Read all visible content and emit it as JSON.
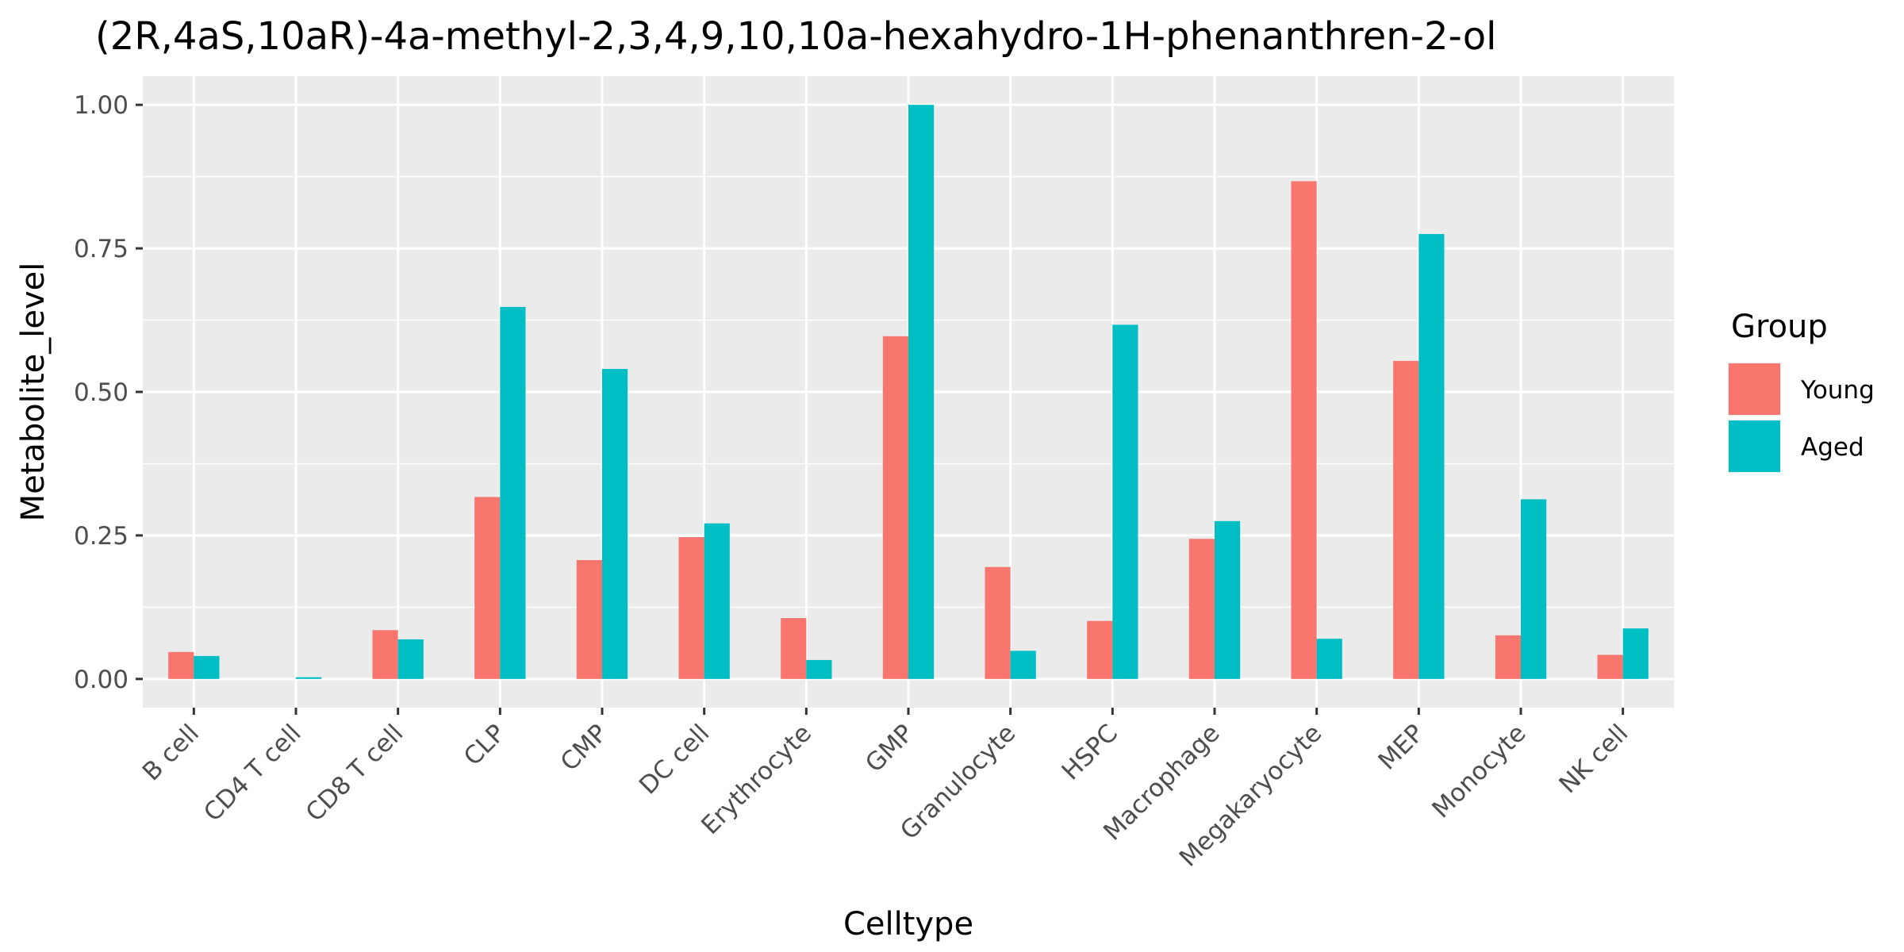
{
  "chart_data": {
    "type": "bar",
    "title": "(2R,4aS,10aR)-4a-methyl-2,3,4,9,10,10a-hexahydro-1H-phenanthren-2-ol",
    "xlabel": "Celltype",
    "ylabel": "Metabolite_level",
    "ylim": [
      -0.05,
      1.05
    ],
    "yticks": [
      0.0,
      0.25,
      0.5,
      0.75,
      1.0
    ],
    "ytick_labels": [
      "0.00",
      "0.25",
      "0.50",
      "0.75",
      "1.00"
    ],
    "grid": true,
    "legend": {
      "title": "Group",
      "position": "right"
    },
    "categories": [
      "B cell",
      "CD4 T cell",
      "CD8 T cell",
      "CLP",
      "CMP",
      "DC cell",
      "Erythrocyte",
      "GMP",
      "Granulocyte",
      "HSPC",
      "Macrophage",
      "Megakaryocyte",
      "MEP",
      "Monocyte",
      "NK cell"
    ],
    "series": [
      {
        "name": "Young",
        "color": "#F8766D",
        "values": [
          0.047,
          0.0,
          0.085,
          0.317,
          0.207,
          0.247,
          0.106,
          0.597,
          0.195,
          0.101,
          0.244,
          0.867,
          0.554,
          0.076,
          0.042
        ]
      },
      {
        "name": "Aged",
        "color": "#00BFC4",
        "values": [
          0.04,
          0.003,
          0.069,
          0.648,
          0.54,
          0.271,
          0.033,
          1.0,
          0.049,
          0.617,
          0.275,
          0.07,
          0.775,
          0.313,
          0.088
        ]
      }
    ]
  }
}
